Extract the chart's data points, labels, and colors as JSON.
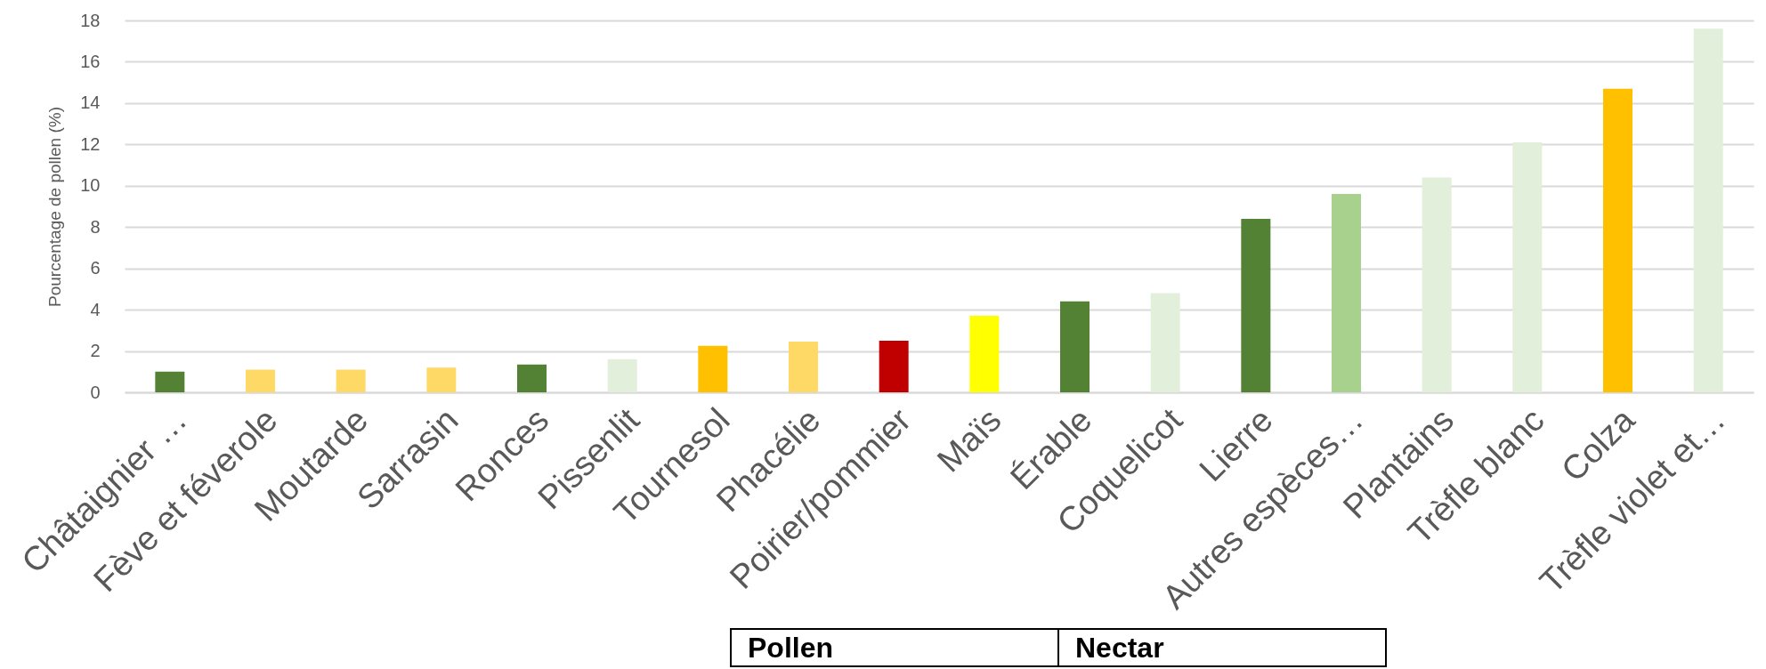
{
  "chart_data": {
    "type": "bar",
    "ylabel": "Pourcentage de pollen (%)",
    "categories": [
      "Châtaignier …",
      "Fève et féverole",
      "Moutarde",
      "Sarrasin",
      "Ronces",
      "Pissenlit",
      "Tournesol",
      "Phacélie",
      "Poirier/pommier",
      "Maïs",
      "Érable",
      "Coquelicot",
      "Lierre",
      "Autres espèces…",
      "Plantains",
      "Trèfle blanc",
      "Colza",
      "Trèfle violet et…"
    ],
    "values": [
      1.0,
      1.1,
      1.1,
      1.2,
      1.35,
      1.6,
      2.25,
      2.45,
      2.5,
      3.7,
      4.4,
      4.8,
      8.4,
      9.6,
      10.4,
      12.1,
      14.7,
      17.6
    ],
    "colors": [
      "#548235",
      "#ffd966",
      "#ffd966",
      "#ffd966",
      "#548235",
      "#e2efda",
      "#ffc000",
      "#ffd966",
      "#c00000",
      "#ffff00",
      "#548235",
      "#e2efda",
      "#548235",
      "#a9d18e",
      "#e2efda",
      "#e2efda",
      "#ffc000",
      "#e2efda"
    ],
    "ylim": [
      0,
      18
    ],
    "yticks": [
      0,
      2,
      4,
      6,
      8,
      10,
      12,
      14,
      16,
      18
    ],
    "grid": "y",
    "annotations": [
      "Pollen",
      "Nectar"
    ]
  }
}
